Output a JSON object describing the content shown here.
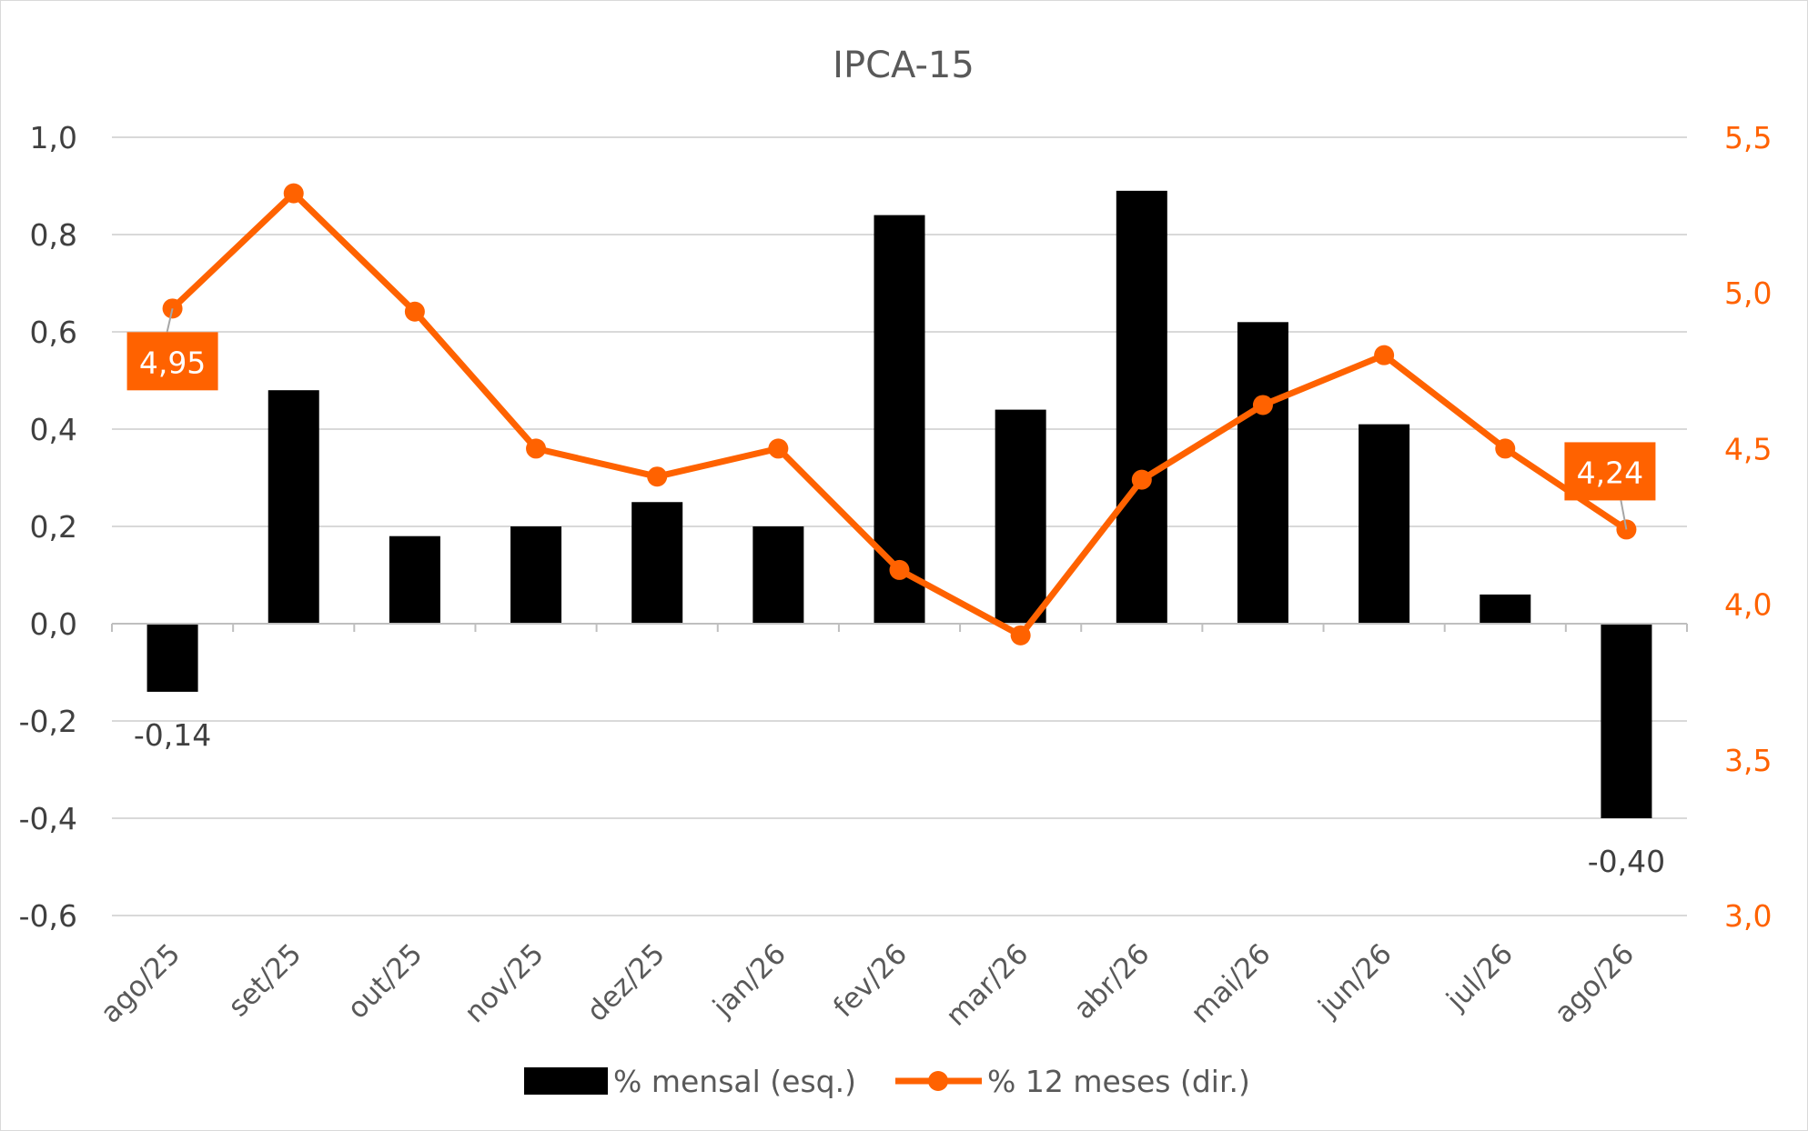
{
  "chart_data": {
    "type": "bar",
    "title": "IPCA-15",
    "categories": [
      "ago/25",
      "set/25",
      "out/25",
      "nov/25",
      "dez/25",
      "jan/26",
      "fev/26",
      "mar/26",
      "abr/26",
      "mai/26",
      "jun/26",
      "jul/26",
      "ago/26"
    ],
    "series": [
      {
        "name": "% mensal (esq.)",
        "type": "bar",
        "axis": "left",
        "color": "#000000",
        "values": [
          -0.14,
          0.48,
          0.18,
          0.2,
          0.25,
          0.2,
          0.84,
          0.44,
          0.89,
          0.62,
          0.41,
          0.06,
          -0.4
        ]
      },
      {
        "name": "% 12 meses (dir.)",
        "type": "line",
        "axis": "right",
        "color": "#ff6200",
        "values": [
          4.95,
          5.32,
          4.94,
          4.5,
          4.41,
          4.5,
          4.11,
          3.9,
          4.4,
          4.64,
          4.8,
          4.5,
          4.24
        ]
      }
    ],
    "left_axis": {
      "ylim": [
        -0.6,
        1.0
      ],
      "ticks": [
        -0.6,
        -0.4,
        -0.2,
        0.0,
        0.2,
        0.4,
        0.6,
        0.8,
        1.0
      ],
      "tick_labels": [
        "-0,6",
        "-0,4",
        "-0,2",
        "0,0",
        "0,2",
        "0,4",
        "0,6",
        "0,8",
        "1,0"
      ]
    },
    "right_axis": {
      "ylim": [
        3.0,
        5.5
      ],
      "ticks": [
        3.0,
        3.5,
        4.0,
        4.5,
        5.0,
        5.5
      ],
      "tick_labels": [
        "3,0",
        "3,5",
        "4,0",
        "4,5",
        "5,0",
        "5,5"
      ],
      "color": "#ff6200"
    },
    "bar_labels": [
      {
        "index": 0,
        "text": "-0,14"
      },
      {
        "index": 12,
        "text": "-0,40"
      }
    ],
    "line_labels": [
      {
        "index": 0,
        "text": "4,95"
      },
      {
        "index": 12,
        "text": "4,24"
      }
    ],
    "grid": true,
    "legend_position": "bottom"
  }
}
